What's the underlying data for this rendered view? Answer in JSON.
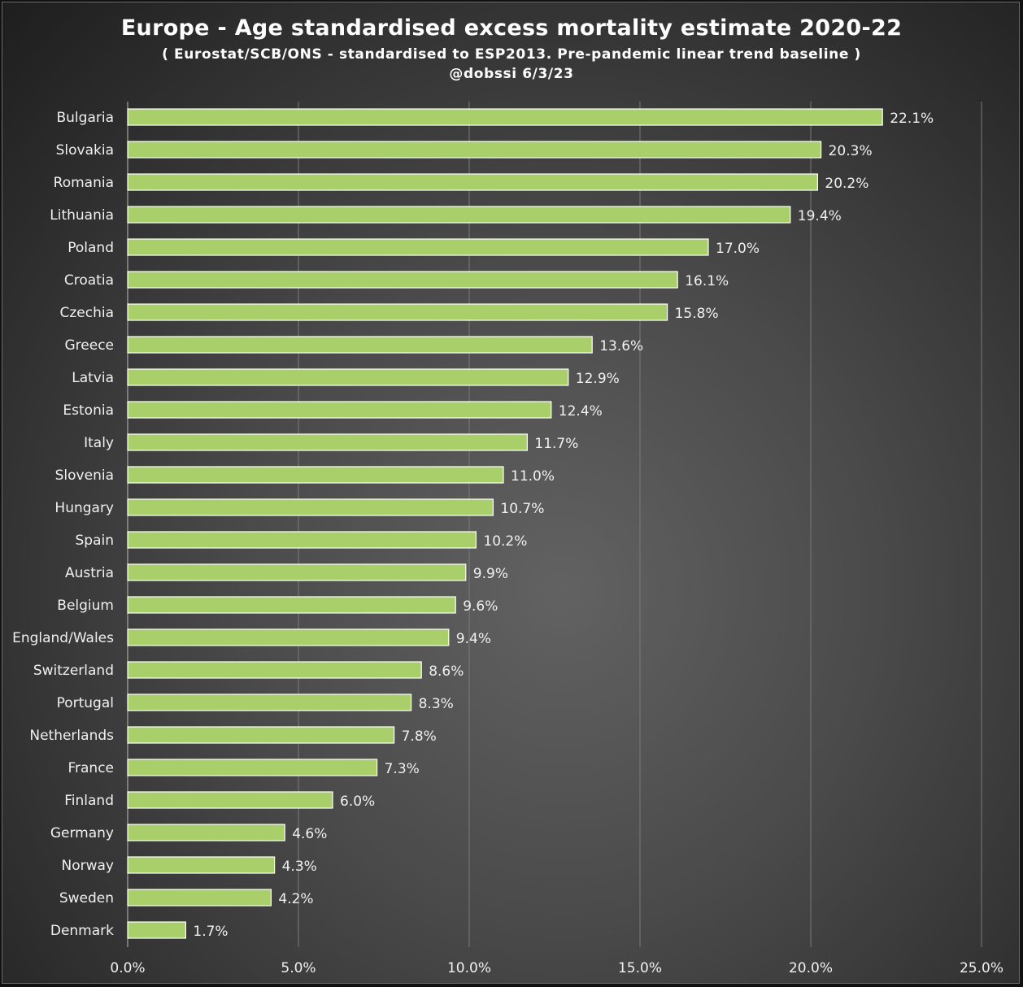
{
  "chart_data": {
    "type": "bar",
    "orientation": "horizontal",
    "title": "Europe - Age standardised excess mortality estimate 2020-22",
    "subtitle": "( Eurostat/SCB/ONS - standardised to ESP2013. Pre-pandemic linear trend baseline )",
    "credit": "@dobssi 6/3/23",
    "categories": [
      "Bulgaria",
      "Slovakia",
      "Romania",
      "Lithuania",
      "Poland",
      "Croatia",
      "Czechia",
      "Greece",
      "Latvia",
      "Estonia",
      "Italy",
      "Slovenia",
      "Hungary",
      "Spain",
      "Austria",
      "Belgium",
      "England/Wales",
      "Switzerland",
      "Portugal",
      "Netherlands",
      "France",
      "Finland",
      "Germany",
      "Norway",
      "Sweden",
      "Denmark"
    ],
    "values": [
      22.1,
      20.3,
      20.2,
      19.4,
      17.0,
      16.1,
      15.8,
      13.6,
      12.9,
      12.4,
      11.7,
      11.0,
      10.7,
      10.2,
      9.9,
      9.6,
      9.4,
      8.6,
      8.3,
      7.8,
      7.3,
      6.0,
      4.6,
      4.3,
      4.2,
      1.7
    ],
    "value_labels": [
      "22.1%",
      "20.3%",
      "20.2%",
      "19.4%",
      "17.0%",
      "16.1%",
      "15.8%",
      "13.6%",
      "12.9%",
      "12.4%",
      "11.7%",
      "11.0%",
      "10.7%",
      "10.2%",
      "9.9%",
      "9.6%",
      "9.4%",
      "8.6%",
      "8.3%",
      "7.8%",
      "7.3%",
      "6.0%",
      "4.6%",
      "4.3%",
      "4.2%",
      "1.7%"
    ],
    "xlim": [
      0,
      25
    ],
    "x_ticks": [
      0,
      5,
      10,
      15,
      20,
      25
    ],
    "x_tick_labels": [
      "0.0%",
      "5.0%",
      "10.0%",
      "15.0%",
      "20.0%",
      "25.0%"
    ],
    "grid": "vertical",
    "legend": "none",
    "colors": {
      "bar_fill": "#a9cf6b",
      "bar_border": "#ffffff",
      "gridline": "#7a7a7a",
      "text": "#ffffff"
    }
  }
}
